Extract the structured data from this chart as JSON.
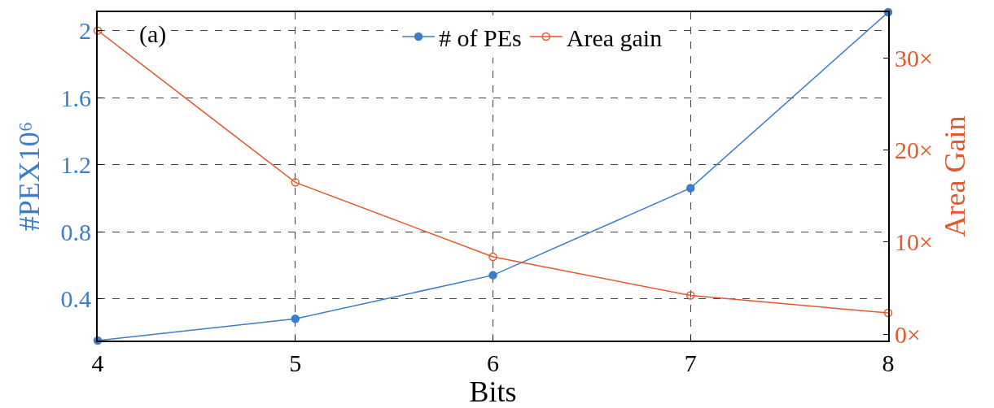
{
  "chart_data": {
    "type": "line",
    "xlabel": "Bits",
    "ylabel": "#PEX10⁶",
    "y2label": "Area Gain",
    "x": [
      4,
      5,
      6,
      7,
      8
    ],
    "series": [
      {
        "name": "# of PEs",
        "color": "#3b7dc8",
        "values": [
          0.15,
          0.28,
          0.54,
          1.06,
          2.11
        ]
      },
      {
        "name": "Area gain",
        "color": "#e2592c",
        "axis": "y2",
        "values": [
          33.0,
          16.5,
          8.4,
          4.2,
          2.3
        ]
      }
    ],
    "xlim": [
      4,
      8
    ],
    "xticks": [
      4,
      5,
      6,
      7,
      8
    ],
    "ylim": [
      0.15,
      2.11
    ],
    "yticks": [
      0.4,
      0.8,
      1.2,
      1.6,
      2
    ],
    "y2lim": [
      -0.7,
      35.0
    ],
    "y2ticks": [
      {
        "value": 0,
        "label": "0×"
      },
      {
        "value": 10,
        "label": "10×"
      },
      {
        "value": 20,
        "label": "20×"
      },
      {
        "value": 30,
        "label": "30×"
      }
    ],
    "annotations": [
      "(a)"
    ],
    "grid": true,
    "legend": "top",
    "marker": "circle",
    "line_style": "solid"
  }
}
